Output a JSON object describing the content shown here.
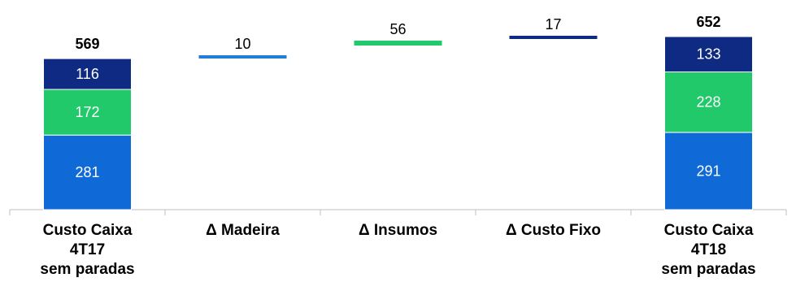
{
  "chart_data": {
    "type": "bar",
    "subtype": "waterfall-stacked",
    "title": "",
    "xlabel": "",
    "ylabel": "",
    "grid": false,
    "legend": "none",
    "ylim": [
      0,
      680
    ],
    "categories": [
      "Custo Caixa\n4T17\nsem paradas",
      "Δ Madeira",
      "Δ Insumos",
      "Δ Custo Fixo",
      "Custo Caixa\n4T18\nsem paradas"
    ],
    "totals": [
      {
        "category_index": 0,
        "total": 569,
        "segments": [
          {
            "value": 281,
            "color": "#0f6ad8"
          },
          {
            "value": 172,
            "color": "#22c96a"
          },
          {
            "value": 116,
            "color": "#0f2a82"
          }
        ]
      },
      {
        "category_index": 4,
        "total": 652,
        "segments": [
          {
            "value": 291,
            "color": "#0f6ad8"
          },
          {
            "value": 228,
            "color": "#22c96a"
          },
          {
            "value": 133,
            "color": "#0f2a82"
          }
        ]
      }
    ],
    "deltas": [
      {
        "category_index": 1,
        "value": 10,
        "color": "#1f7fd6"
      },
      {
        "category_index": 2,
        "value": 56,
        "color": "#22c96a"
      },
      {
        "category_index": 3,
        "value": 17,
        "color": "#0f2a82"
      }
    ]
  }
}
